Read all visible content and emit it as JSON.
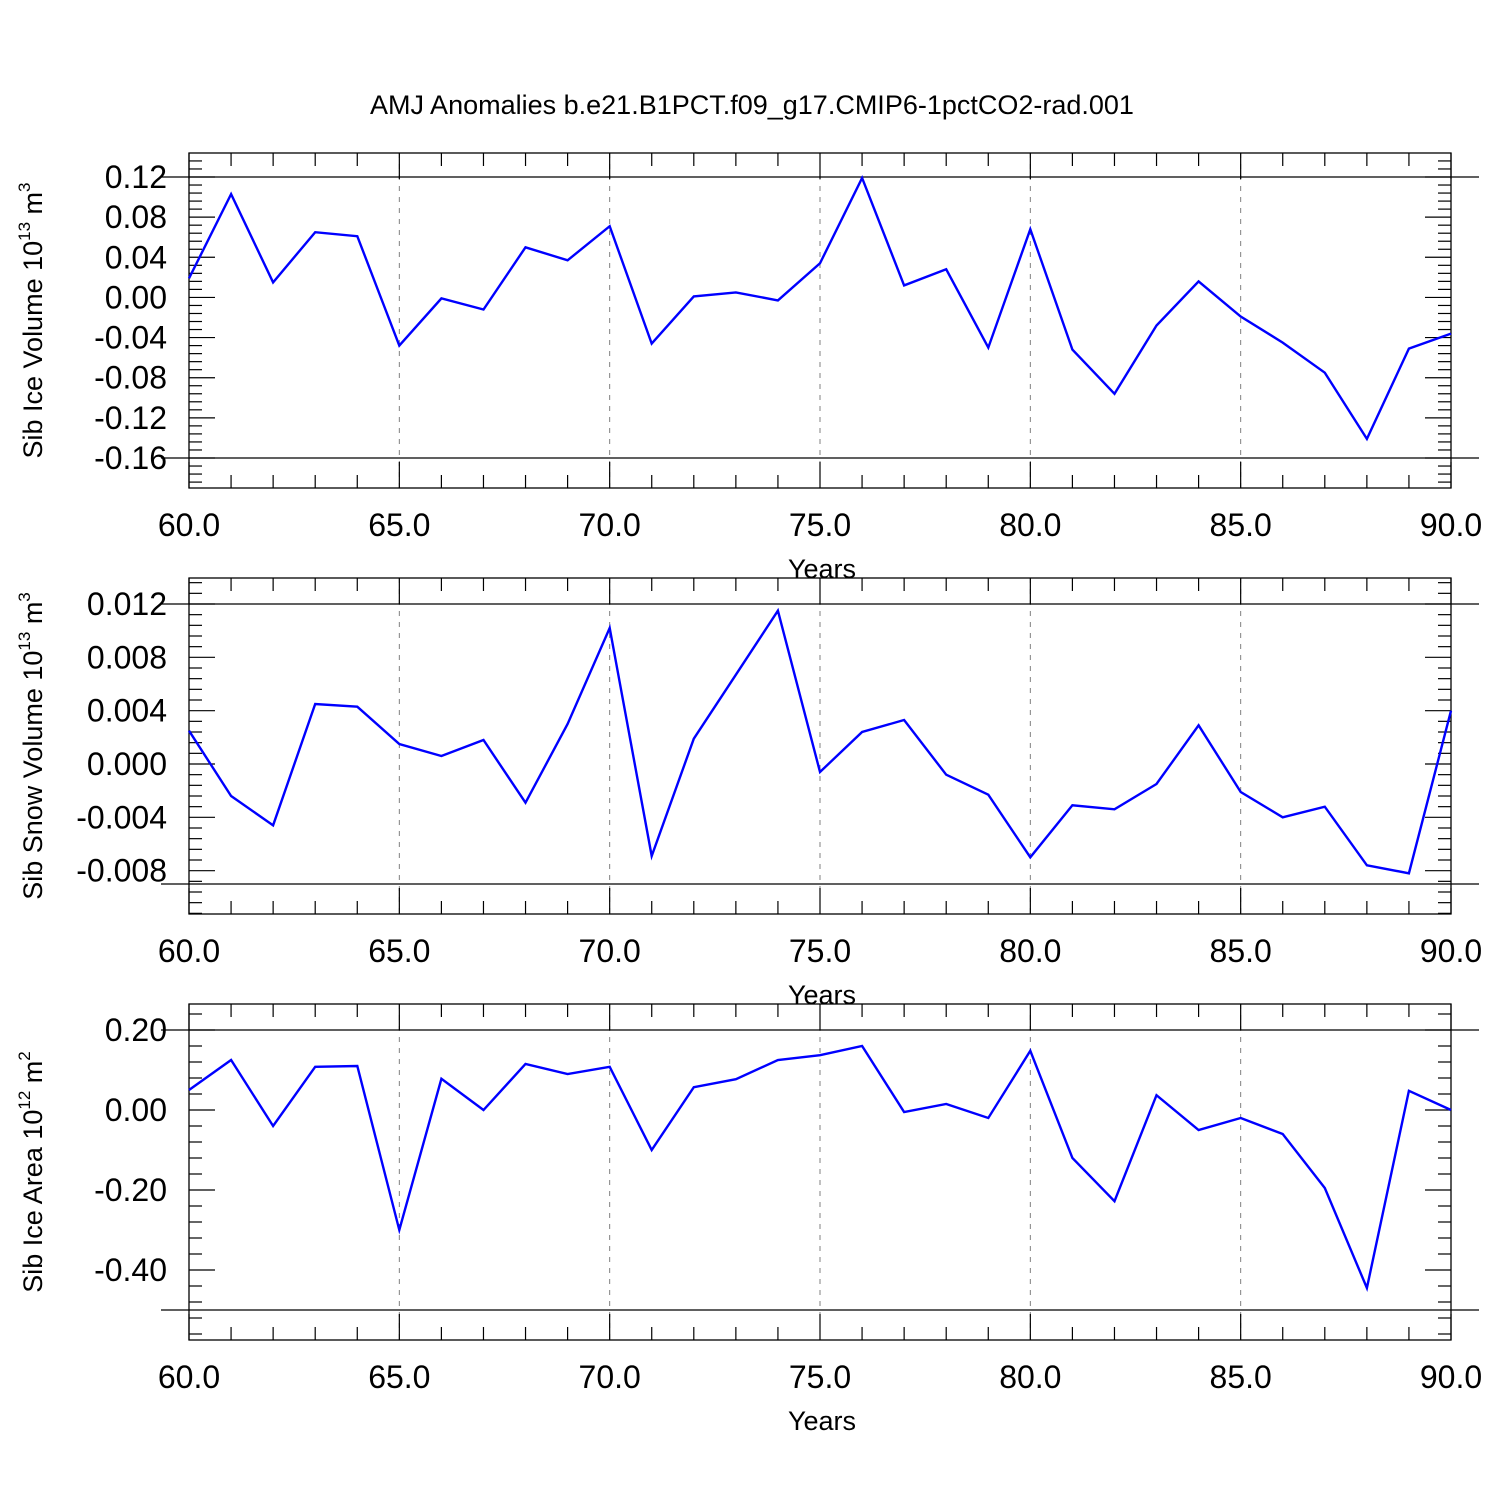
{
  "title": "AMJ Anomalies b.e21.B1PCT.f09_g17.CMIP6-1pctCO2-rad.001",
  "colors": {
    "series": "#0000ff",
    "frame": "#000000",
    "grid": "#808080"
  },
  "chart_data": [
    {
      "type": "line",
      "ylabel_prefix": "Sib Ice Volume 10",
      "ylabel_exp1": "13",
      "ylabel_mid": " m",
      "ylabel_exp2": "3",
      "xlabel": "Years",
      "xlim": [
        60,
        90
      ],
      "ylim": [
        -0.16,
        0.12
      ],
      "yticks": [
        0.12,
        0.08,
        0.04,
        0.0,
        -0.04,
        -0.08,
        -0.12,
        -0.16
      ],
      "ytick_labels": [
        "0.12",
        "0.08",
        "0.04",
        "0.00",
        "-0.04",
        "-0.08",
        "-0.12",
        "-0.16"
      ],
      "xticks": [
        60,
        65,
        70,
        75,
        80,
        85,
        90
      ],
      "xtick_labels": [
        "60.0",
        "65.0",
        "70.0",
        "75.0",
        "80.0",
        "85.0",
        "90.0"
      ],
      "grid_x": true,
      "x": [
        60,
        61,
        62,
        63,
        64,
        65,
        66,
        67,
        68,
        69,
        70,
        71,
        72,
        73,
        74,
        75,
        76,
        77,
        78,
        79,
        80,
        81,
        82,
        83,
        84,
        85,
        86,
        87,
        88,
        89,
        90
      ],
      "y": [
        0.019,
        0.103,
        0.015,
        0.065,
        0.061,
        -0.048,
        -0.001,
        -0.012,
        0.05,
        0.037,
        0.071,
        -0.046,
        0.001,
        0.005,
        -0.003,
        0.034,
        0.119,
        0.012,
        0.028,
        -0.05,
        0.068,
        -0.052,
        -0.096,
        -0.028,
        0.016,
        -0.019,
        -0.045,
        -0.075,
        -0.141,
        -0.051,
        -0.036
      ]
    },
    {
      "type": "line",
      "ylabel_prefix": "Sib Snow Volume 10",
      "ylabel_exp1": "13",
      "ylabel_mid": " m",
      "ylabel_exp2": "3",
      "xlabel": "Years",
      "xlim": [
        60,
        90
      ],
      "ylim": [
        -0.009,
        0.012
      ],
      "yticks": [
        0.012,
        0.008,
        0.004,
        0.0,
        -0.004,
        -0.008
      ],
      "ytick_labels": [
        "0.012",
        "0.008",
        "0.004",
        "0.000",
        "-0.004",
        "-0.008"
      ],
      "xticks": [
        60,
        65,
        70,
        75,
        80,
        85,
        90
      ],
      "xtick_labels": [
        "60.0",
        "65.0",
        "70.0",
        "75.0",
        "80.0",
        "85.0",
        "90.0"
      ],
      "grid_x": true,
      "x": [
        60,
        61,
        62,
        63,
        64,
        65,
        66,
        67,
        68,
        69,
        70,
        71,
        72,
        73,
        74,
        75,
        76,
        77,
        78,
        79,
        80,
        81,
        82,
        83,
        84,
        85,
        86,
        87,
        88,
        89,
        90
      ],
      "y": [
        0.0025,
        -0.0024,
        -0.0046,
        0.0045,
        0.0043,
        0.0015,
        0.0006,
        0.0018,
        -0.0029,
        0.003,
        0.0102,
        -0.0069,
        0.0019,
        0.0067,
        0.0115,
        -0.0006,
        0.0024,
        0.0033,
        -0.0008,
        -0.0023,
        -0.007,
        -0.0031,
        -0.0034,
        -0.0015,
        0.0029,
        -0.0021,
        -0.004,
        -0.0032,
        -0.0076,
        -0.0082,
        0.004
      ]
    },
    {
      "type": "line",
      "ylabel_prefix": "Sib Ice Area 10",
      "ylabel_exp1": "12",
      "ylabel_mid": " m",
      "ylabel_exp2": "2",
      "xlabel": "Years",
      "xlim": [
        60,
        90
      ],
      "ylim": [
        -0.5,
        0.2
      ],
      "yticks": [
        0.2,
        0.0,
        -0.2,
        -0.4
      ],
      "ytick_labels": [
        "0.20",
        "0.00",
        "-0.20",
        "-0.40"
      ],
      "xticks": [
        60,
        65,
        70,
        75,
        80,
        85,
        90
      ],
      "xtick_labels": [
        "60.0",
        "65.0",
        "70.0",
        "75.0",
        "80.0",
        "85.0",
        "90.0"
      ],
      "grid_x": true,
      "x": [
        60,
        61,
        62,
        63,
        64,
        65,
        66,
        67,
        68,
        69,
        70,
        71,
        72,
        73,
        74,
        75,
        76,
        77,
        78,
        79,
        80,
        81,
        82,
        83,
        84,
        85,
        86,
        87,
        88,
        89,
        90
      ],
      "y": [
        0.05,
        0.125,
        -0.04,
        0.108,
        0.11,
        -0.3,
        0.078,
        0.0,
        0.115,
        0.09,
        0.108,
        -0.1,
        0.057,
        0.077,
        0.125,
        0.137,
        0.16,
        -0.005,
        0.015,
        -0.02,
        0.148,
        -0.12,
        -0.228,
        0.037,
        -0.05,
        -0.02,
        -0.06,
        -0.195,
        -0.445,
        0.048,
        0.0
      ]
    }
  ]
}
